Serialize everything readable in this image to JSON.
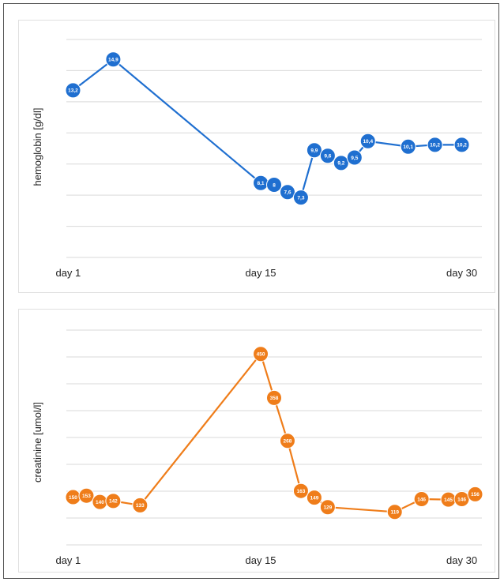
{
  "chart_data": [
    {
      "type": "line",
      "ylabel": "hemoglobin [g/dl]",
      "xlabel": "",
      "x_tick_labels": [
        {
          "x": 1,
          "label": "day 1"
        },
        {
          "x": 15,
          "label": "day 15"
        },
        {
          "x": 30,
          "label": "day 30"
        }
      ],
      "xlim": [
        0.5,
        31.5
      ],
      "ylim": [
        4,
        16
      ],
      "grid": true,
      "color": "#1f6fd0",
      "series": [
        {
          "x": [
            1,
            4,
            15,
            16,
            17,
            18,
            19,
            20,
            21,
            22,
            23,
            26,
            28,
            30
          ],
          "values": [
            13.2,
            14.9,
            8.1,
            8,
            7.6,
            7.3,
            9.9,
            9.6,
            9.2,
            9.5,
            10.4,
            10.1,
            10.2,
            10.2
          ],
          "labels": [
            "13,2",
            "14,9",
            "8,1",
            "8",
            "7,6",
            "7,3",
            "9,9",
            "9,6",
            "9,2",
            "9,5",
            "10,4",
            "10,1",
            "10,2",
            "10,2"
          ]
        }
      ]
    },
    {
      "type": "line",
      "ylabel": "creatinine [umol/l]",
      "xlabel": "",
      "x_tick_labels": [
        {
          "x": 1,
          "label": "day 1"
        },
        {
          "x": 15,
          "label": "day 15"
        },
        {
          "x": 30,
          "label": "day 30"
        }
      ],
      "xlim": [
        0.5,
        31.5
      ],
      "ylim": [
        50,
        500
      ],
      "grid": true,
      "color": "#ef7d1a",
      "series": [
        {
          "x": [
            1,
            2,
            3,
            4,
            6,
            15,
            16,
            17,
            18,
            19,
            20,
            25,
            27,
            29,
            30,
            31
          ],
          "values": [
            150,
            153,
            140,
            142,
            133,
            450,
            358,
            268,
            163,
            149,
            129,
            119,
            146,
            145,
            146,
            156
          ],
          "labels": [
            "150",
            "153",
            "140",
            "142",
            "133",
            "450",
            "358",
            "268",
            "163",
            "149",
            "129",
            "119",
            "146",
            "145",
            "146",
            "156"
          ]
        }
      ]
    }
  ]
}
